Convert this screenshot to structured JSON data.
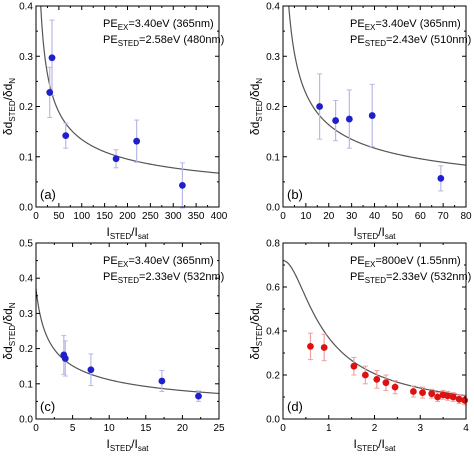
{
  "chart_data": [
    {
      "panel_label": "(a)",
      "type": "scatter",
      "xlabel": "I",
      "xlabel_sub": "STED",
      "xlabel_sep": "/I",
      "xlabel_sub2": "sat",
      "ylabel": "δd",
      "ylabel_sub": "STED",
      "ylabel_sep": "/δd",
      "ylabel_sub2": "N",
      "xlim": [
        0,
        400
      ],
      "ylim": [
        0,
        0.4
      ],
      "xticks": [
        0,
        50,
        100,
        150,
        200,
        250,
        300,
        350,
        400
      ],
      "yticks": [
        0.0,
        0.1,
        0.2,
        0.3,
        0.4
      ],
      "xtick_labels": [
        "0",
        "50",
        "100",
        "150",
        "200",
        "250",
        "300",
        "350",
        "400"
      ],
      "ytick_labels": [
        "0.0",
        "0.1",
        "0.2",
        "0.3",
        "0.4"
      ],
      "annotation": [
        {
          "main": "PE",
          "sub": "EX",
          "rest": "=3.40eV (365nm)"
        },
        {
          "main": "PE",
          "sub": "STED",
          "rest": "=2.58eV (480nm)"
        }
      ],
      "marker_color": "#1f1fcc",
      "errbar_color": "#b8b8e8",
      "points": [
        {
          "x": 30,
          "y": 0.228,
          "err": 0.05
        },
        {
          "x": 35,
          "y": 0.297,
          "err": 0.075
        },
        {
          "x": 65,
          "y": 0.142,
          "err": 0.025
        },
        {
          "x": 175,
          "y": 0.096,
          "err": 0.018
        },
        {
          "x": 220,
          "y": 0.131,
          "err": 0.042
        },
        {
          "x": 320,
          "y": 0.043,
          "err": 0.045
        }
      ],
      "fit": {
        "form": "a/sqrt(1+x)",
        "a": 1.35
      }
    },
    {
      "panel_label": "(b)",
      "type": "scatter",
      "xlabel": "I",
      "xlabel_sub": "STED",
      "xlabel_sep": "/I",
      "xlabel_sub2": "sat",
      "ylabel": "δd",
      "ylabel_sub": "STED",
      "ylabel_sep": "/δd",
      "ylabel_sub2": "N",
      "xlim": [
        0,
        80
      ],
      "ylim": [
        0,
        0.4
      ],
      "xticks": [
        0,
        10,
        20,
        30,
        40,
        50,
        60,
        70,
        80
      ],
      "yticks": [
        0.0,
        0.1,
        0.2,
        0.3,
        0.4
      ],
      "xtick_labels": [
        "0",
        "10",
        "20",
        "30",
        "40",
        "50",
        "60",
        "70",
        "80"
      ],
      "ytick_labels": [
        "0.0",
        "0.1",
        "0.2",
        "0.3",
        "0.4"
      ],
      "annotation": [
        {
          "main": "PE",
          "sub": "EX",
          "rest": "=3.40eV (365nm)"
        },
        {
          "main": "PE",
          "sub": "STED",
          "rest": "=2.43eV (510nm)"
        }
      ],
      "marker_color": "#1f1fcc",
      "errbar_color": "#b8b8e8",
      "points": [
        {
          "x": 16,
          "y": 0.2,
          "err": 0.065
        },
        {
          "x": 23,
          "y": 0.172,
          "err": 0.04
        },
        {
          "x": 29,
          "y": 0.175,
          "err": 0.058
        },
        {
          "x": 39,
          "y": 0.182,
          "err": 0.062
        },
        {
          "x": 69,
          "y": 0.057,
          "err": 0.025
        }
      ],
      "fit": {
        "form": "a/sqrt(1+x)",
        "a": 0.75
      }
    },
    {
      "panel_label": "(c)",
      "type": "scatter",
      "xlabel": "I",
      "xlabel_sub": "STED",
      "xlabel_sep": "/I",
      "xlabel_sub2": "sat",
      "ylabel": "δd",
      "ylabel_sub": "STED",
      "ylabel_sep": "/δd",
      "ylabel_sub2": "N",
      "xlim": [
        0,
        25
      ],
      "ylim": [
        0,
        0.5
      ],
      "xticks": [
        0,
        5,
        10,
        15,
        20,
        25
      ],
      "yticks": [
        0.0,
        0.1,
        0.2,
        0.3,
        0.4,
        0.5
      ],
      "xtick_labels": [
        "0",
        "5",
        "10",
        "15",
        "20",
        "25"
      ],
      "ytick_labels": [
        "0.0",
        "0.1",
        "0.2",
        "0.3",
        "0.4",
        "0.5"
      ],
      "annotation": [
        {
          "main": "PE",
          "sub": "EX",
          "rest": "=3.40eV (365nm)"
        },
        {
          "main": "PE",
          "sub": "STED",
          "rest": "=2.33eV (532nm)"
        }
      ],
      "marker_color": "#1f1fcc",
      "errbar_color": "#b8b8e8",
      "points": [
        {
          "x": 3.8,
          "y": 0.182,
          "err": 0.055
        },
        {
          "x": 4.0,
          "y": 0.172,
          "err": 0.05
        },
        {
          "x": 7.5,
          "y": 0.14,
          "err": 0.045
        },
        {
          "x": 17.2,
          "y": 0.108,
          "err": 0.03
        },
        {
          "x": 22.2,
          "y": 0.065,
          "err": 0.015
        }
      ],
      "fit": {
        "form": "a/sqrt(1+x)",
        "a": 0.37
      }
    },
    {
      "panel_label": "(d)",
      "type": "scatter",
      "xlabel": "I",
      "xlabel_sub": "STED",
      "xlabel_sep": "/I",
      "xlabel_sub2": "sat",
      "ylabel": "δd",
      "ylabel_sub": "STED",
      "ylabel_sep": "/δd",
      "ylabel_sub2": "N",
      "xlim": [
        0,
        4
      ],
      "ylim": [
        0,
        0.8
      ],
      "xticks": [
        0,
        1,
        2,
        3,
        4
      ],
      "yticks": [
        0.0,
        0.2,
        0.4,
        0.6,
        0.8
      ],
      "xtick_labels": [
        "0",
        "1",
        "2",
        "3",
        "4"
      ],
      "ytick_labels": [
        "0.0",
        "0.2",
        "0.4",
        "0.6",
        "0.8"
      ],
      "annotation": [
        {
          "main": "PE",
          "sub": "EX",
          "rest": "=800eV (1.55nm)"
        },
        {
          "main": "PE",
          "sub": "STED",
          "rest": "=2.33eV (532nm)"
        }
      ],
      "marker_color": "#dd1111",
      "errbar_color": "#f0a0a0",
      "points": [
        {
          "x": 0.6,
          "y": 0.33,
          "err": 0.06
        },
        {
          "x": 0.9,
          "y": 0.325,
          "err": 0.06
        },
        {
          "x": 1.55,
          "y": 0.24,
          "err": 0.04
        },
        {
          "x": 1.8,
          "y": 0.2,
          "err": 0.04
        },
        {
          "x": 2.05,
          "y": 0.18,
          "err": 0.04
        },
        {
          "x": 2.25,
          "y": 0.165,
          "err": 0.035
        },
        {
          "x": 2.45,
          "y": 0.145,
          "err": 0.03
        },
        {
          "x": 2.85,
          "y": 0.125,
          "err": 0.025
        },
        {
          "x": 3.05,
          "y": 0.12,
          "err": 0.025
        },
        {
          "x": 3.25,
          "y": 0.115,
          "err": 0.02
        },
        {
          "x": 3.38,
          "y": 0.1,
          "err": 0.02
        },
        {
          "x": 3.5,
          "y": 0.11,
          "err": 0.02
        },
        {
          "x": 3.6,
          "y": 0.105,
          "err": 0.02
        },
        {
          "x": 3.72,
          "y": 0.1,
          "err": 0.02
        },
        {
          "x": 3.85,
          "y": 0.09,
          "err": 0.02
        },
        {
          "x": 3.97,
          "y": 0.085,
          "err": 0.02
        }
      ],
      "fit": {
        "form": "a/sqrt(1+b*x^2)",
        "a": 0.72,
        "b": 2.8
      }
    }
  ]
}
